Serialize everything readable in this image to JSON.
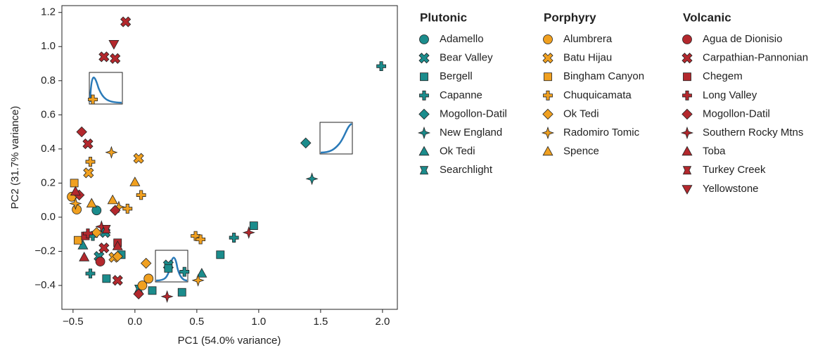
{
  "chart_data": {
    "type": "scatter",
    "x_label": "PC1 (54.0% variance)",
    "y_label": "PC2 (31.7% variance)",
    "xlim": [
      -0.59,
      2.12
    ],
    "ylim": [
      -0.54,
      1.24
    ],
    "xticks": [
      {
        "value": -0.5,
        "label": "−0.5"
      },
      {
        "value": 0,
        "label": "0.0"
      },
      0.5,
      {
        "value": 1,
        "label": "1.0"
      },
      1.5,
      {
        "value": 2,
        "label": "2.0"
      }
    ],
    "yticks": [
      {
        "value": -0.4,
        "label": "−0.4"
      },
      {
        "value": -0.2,
        "label": "−0.2"
      },
      {
        "value": 0,
        "label": "0.0"
      },
      0.2,
      0.4,
      0.6,
      0.8,
      {
        "value": 1,
        "label": "1.0"
      },
      1.2
    ],
    "groups": [
      {
        "title": "Plutonic"
      },
      {
        "title": "Porphyry"
      },
      {
        "title": "Volcanic"
      }
    ],
    "series": [
      {
        "name": "Adamello",
        "group": 0,
        "color": "#1b8c8c",
        "marker": "circle",
        "x": [
          -0.31
        ],
        "y": [
          0.04
        ]
      },
      {
        "name": "Bear Valley",
        "group": 0,
        "color": "#1b8c8c",
        "marker": "x",
        "x": [
          -0.29,
          -0.24,
          0.27
        ],
        "y": [
          -0.23,
          -0.09,
          -0.28
        ]
      },
      {
        "name": "Bergell",
        "group": 0,
        "color": "#1b8c8c",
        "marker": "square",
        "x": [
          0.96,
          0.69,
          0.38,
          0.14,
          0.27,
          -0.23,
          -0.11
        ],
        "y": [
          -0.05,
          -0.22,
          -0.44,
          -0.43,
          -0.3,
          -0.36,
          -0.22
        ]
      },
      {
        "name": "Capanne",
        "group": 0,
        "color": "#1b8c8c",
        "marker": "plus",
        "x": [
          1.99,
          0.8,
          0.4,
          -0.36,
          -0.34
        ],
        "y": [
          0.885,
          -0.12,
          -0.32,
          -0.33,
          -0.11
        ]
      },
      {
        "name": "Mogollon-Datil",
        "group": 0,
        "color": "#1b8c8c",
        "marker": "diamond",
        "x": [
          1.38
        ],
        "y": [
          0.435
        ]
      },
      {
        "name": "New England",
        "group": 0,
        "color": "#1b8c8c",
        "marker": "star",
        "x": [
          1.43
        ],
        "y": [
          0.225
        ]
      },
      {
        "name": "Ok Tedi",
        "group": 0,
        "color": "#1b8c8c",
        "marker": "tri-up",
        "x": [
          0.54,
          -0.42
        ],
        "y": [
          -0.33,
          -0.165
        ]
      },
      {
        "name": "Searchlight",
        "group": 0,
        "color": "#1b8c8c",
        "marker": "bowtie",
        "x": [
          0.03
        ],
        "y": [
          -0.42
        ]
      },
      {
        "name": "Alumbrera",
        "group": 1,
        "color": "#f0a020",
        "marker": "circle",
        "x": [
          -0.51,
          -0.47,
          0.11,
          0.06
        ],
        "y": [
          0.12,
          0.045,
          -0.36,
          -0.4
        ]
      },
      {
        "name": "Batu Hijau",
        "group": 1,
        "color": "#f0a020",
        "marker": "x",
        "x": [
          -0.375,
          0.03,
          -0.17
        ],
        "y": [
          0.26,
          0.345,
          -0.235
        ]
      },
      {
        "name": "Bingham Canyon",
        "group": 1,
        "color": "#f0a020",
        "marker": "square",
        "x": [
          -0.49,
          -0.46
        ],
        "y": [
          0.2,
          -0.135
        ]
      },
      {
        "name": "Chuquicamata",
        "group": 1,
        "color": "#f0a020",
        "marker": "plus",
        "x": [
          -0.34,
          -0.36,
          0.05,
          -0.06,
          0.49,
          0.53
        ],
        "y": [
          0.69,
          0.325,
          0.13,
          0.05,
          -0.11,
          -0.13
        ]
      },
      {
        "name": "Ok Tedi",
        "group": 1,
        "color": "#f0a020",
        "marker": "diamond",
        "x": [
          -0.14,
          0.09,
          -0.31
        ],
        "y": [
          -0.23,
          -0.27,
          -0.09
        ]
      },
      {
        "name": "Radomiro Tomic",
        "group": 1,
        "color": "#f0a020",
        "marker": "star",
        "x": [
          -0.19,
          0.51,
          -0.48,
          -0.13
        ],
        "y": [
          0.38,
          -0.37,
          0.08,
          0.06
        ]
      },
      {
        "name": "Spence",
        "group": 1,
        "color": "#f0a020",
        "marker": "tri-up",
        "x": [
          0.0,
          -0.18,
          -0.35
        ],
        "y": [
          0.205,
          0.1,
          0.08
        ]
      },
      {
        "name": "Agua de Dionisio",
        "group": 2,
        "color": "#b3282d",
        "marker": "circle",
        "x": [
          -0.28
        ],
        "y": [
          -0.26
        ]
      },
      {
        "name": "Carpathian-Pannonian",
        "group": 2,
        "color": "#b3282d",
        "marker": "x",
        "x": [
          -0.075,
          -0.25,
          -0.16,
          -0.38,
          -0.14,
          -0.25
        ],
        "y": [
          1.145,
          0.94,
          0.93,
          0.43,
          -0.37,
          -0.18
        ]
      },
      {
        "name": "Chegem",
        "group": 2,
        "color": "#b3282d",
        "marker": "square",
        "x": [
          -0.14,
          -0.4
        ],
        "y": [
          -0.15,
          -0.11
        ]
      },
      {
        "name": "Long Valley",
        "group": 2,
        "color": "#b3282d",
        "marker": "plus",
        "x": [
          -0.38
        ],
        "y": [
          -0.095
        ]
      },
      {
        "name": "Mogollon-Datil",
        "group": 2,
        "color": "#b3282d",
        "marker": "diamond",
        "x": [
          -0.43,
          -0.16,
          0.03,
          -0.45
        ],
        "y": [
          0.5,
          0.04,
          -0.45,
          0.13
        ]
      },
      {
        "name": "Southern Rocky Mtns",
        "group": 2,
        "color": "#b3282d",
        "marker": "star",
        "x": [
          0.92,
          0.26,
          -0.27
        ],
        "y": [
          -0.09,
          -0.465,
          -0.055
        ]
      },
      {
        "name": "Toba",
        "group": 2,
        "color": "#b3282d",
        "marker": "tri-up",
        "x": [
          -0.41,
          -0.14,
          -0.48
        ],
        "y": [
          -0.235,
          -0.17,
          0.15
        ]
      },
      {
        "name": "Turkey Creek",
        "group": 2,
        "color": "#b3282d",
        "marker": "bowtie",
        "x": [
          -0.23
        ],
        "y": [
          -0.07
        ]
      },
      {
        "name": "Yellowstone",
        "group": 2,
        "color": "#b3282d",
        "marker": "tri-down",
        "x": [
          -0.17
        ],
        "y": [
          1.015
        ]
      }
    ]
  }
}
